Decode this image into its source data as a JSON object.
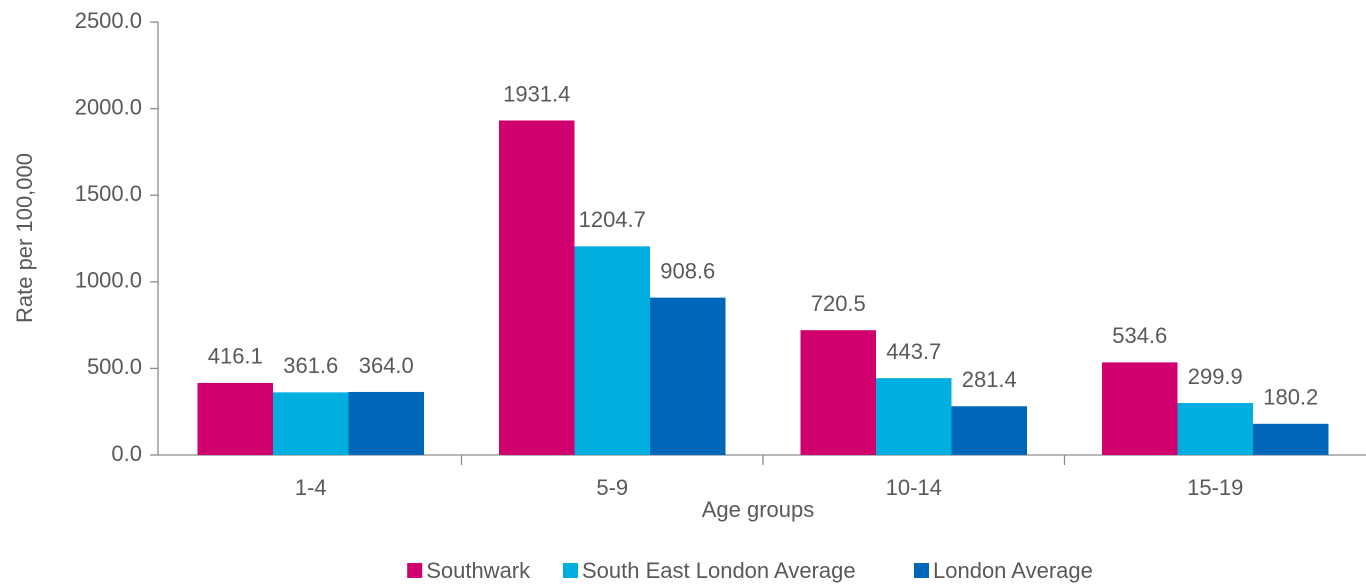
{
  "chart_data": {
    "type": "bar",
    "xlabel": "Age groups",
    "ylabel": "Rate per 100,000",
    "categories": [
      "1-4",
      "5-9",
      "10-14",
      "15-19"
    ],
    "series": [
      {
        "name": "Southwark",
        "color": "#d0006f",
        "values": [
          416.1,
          1931.4,
          720.5,
          534.6
        ],
        "value_labels": [
          "416.1",
          "1931.4",
          "720.5",
          "534.6"
        ]
      },
      {
        "name": "South East London Average",
        "color": "#00aee0",
        "values": [
          361.6,
          1204.7,
          443.7,
          299.9
        ],
        "value_labels": [
          "361.6",
          "1204.7",
          "443.7",
          "299.9"
        ]
      },
      {
        "name": "London Average",
        "color": "#0066b8",
        "values": [
          364,
          908.6,
          281.4,
          180.2
        ],
        "value_labels": [
          "364.0",
          "908.6",
          "281.4",
          "180.2"
        ]
      }
    ],
    "ylim": [
      0,
      2500
    ],
    "yticks": [
      {
        "value": 0,
        "label": "0.0"
      },
      {
        "value": 500,
        "label": "500.0"
      },
      {
        "value": 1000,
        "label": "1000.0"
      },
      {
        "value": 1500,
        "label": "1500.0"
      },
      {
        "value": 2000,
        "label": "2000.0"
      },
      {
        "value": 2500,
        "label": "2500.0"
      }
    ],
    "grid": false,
    "legend": "bottom"
  }
}
